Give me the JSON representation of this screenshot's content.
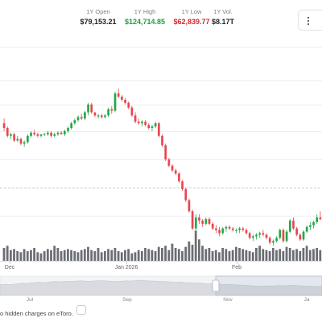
{
  "stats": [
    {
      "label": "1Y Open",
      "value": "$79,153.21",
      "color": "#222222"
    },
    {
      "label": "1Y High",
      "value": "$124,714.85",
      "color": "#1f9d3e"
    },
    {
      "label": "1Y Low",
      "value": "$62,839.77",
      "color": "#d6252c"
    },
    {
      "label": "1Y Vol.",
      "value": "$8.17T",
      "color": "#222222"
    }
  ],
  "footer": {
    "text": "o hidden charges on eToro."
  },
  "icons": {
    "menu": "menu-icon",
    "info": "info-icon"
  },
  "colors": {
    "up": "#21a94b",
    "down": "#e8464e",
    "volume": "#6b6e73",
    "navigator_fill": "#d9dbe0"
  },
  "chart_data": {
    "type": "candlestick",
    "candles": [
      [
        98,
        101,
        93,
        95
      ],
      [
        95,
        96,
        89,
        90
      ],
      [
        90,
        92,
        88,
        91
      ],
      [
        91,
        92,
        86,
        87
      ],
      [
        87,
        90,
        86,
        88
      ],
      [
        88,
        89,
        84,
        85
      ],
      [
        85,
        87,
        83,
        86
      ],
      [
        86,
        91,
        85,
        90
      ],
      [
        90,
        93,
        89,
        92
      ],
      [
        92,
        94,
        90,
        91
      ],
      [
        91,
        92,
        89,
        90
      ],
      [
        90,
        91,
        89,
        91
      ],
      [
        91,
        92,
        90,
        91
      ],
      [
        91,
        93,
        90,
        92
      ],
      [
        92,
        93,
        89,
        90
      ],
      [
        90,
        92,
        89,
        91
      ],
      [
        91,
        93,
        90,
        92
      ],
      [
        92,
        93,
        91,
        91
      ],
      [
        91,
        94,
        90,
        93
      ],
      [
        93,
        96,
        92,
        95
      ],
      [
        95,
        99,
        94,
        98
      ],
      [
        98,
        101,
        97,
        100
      ],
      [
        100,
        103,
        99,
        102
      ],
      [
        102,
        104,
        100,
        101
      ],
      [
        101,
        106,
        100,
        105
      ],
      [
        105,
        111,
        103,
        110
      ],
      [
        110,
        111,
        104,
        105
      ],
      [
        105,
        105,
        102,
        103
      ],
      [
        103,
        104,
        101,
        103
      ],
      [
        103,
        104,
        101,
        102
      ],
      [
        102,
        104,
        101,
        103
      ],
      [
        103,
        108,
        102,
        107
      ],
      [
        107,
        109,
        104,
        106
      ],
      [
        106,
        118,
        105,
        117
      ],
      [
        117,
        120,
        114,
        115
      ],
      [
        115,
        116,
        112,
        113
      ],
      [
        113,
        114,
        110,
        111
      ],
      [
        111,
        112,
        107,
        108
      ],
      [
        108,
        109,
        102,
        103
      ],
      [
        103,
        105,
        98,
        99
      ],
      [
        99,
        101,
        97,
        98
      ],
      [
        98,
        100,
        96,
        99
      ],
      [
        99,
        100,
        96,
        97
      ],
      [
        97,
        98,
        94,
        95
      ],
      [
        95,
        97,
        93,
        96
      ],
      [
        96,
        99,
        95,
        98
      ],
      [
        98,
        99,
        89,
        90
      ],
      [
        90,
        91,
        83,
        84
      ],
      [
        84,
        85,
        74,
        75
      ],
      [
        75,
        76,
        70,
        71
      ],
      [
        71,
        72,
        67,
        68
      ],
      [
        68,
        69,
        65,
        66
      ],
      [
        66,
        67,
        60,
        61
      ],
      [
        61,
        62,
        55,
        56
      ],
      [
        56,
        57,
        48,
        49
      ],
      [
        49,
        50,
        41,
        42
      ],
      [
        42,
        43,
        30,
        31
      ],
      [
        31,
        40,
        22,
        38
      ],
      [
        38,
        40,
        34,
        36
      ],
      [
        36,
        37,
        32,
        34
      ],
      [
        34,
        38,
        33,
        37
      ],
      [
        37,
        38,
        33,
        34
      ],
      [
        34,
        35,
        30,
        31
      ],
      [
        31,
        33,
        28,
        30
      ],
      [
        30,
        32,
        26,
        28
      ],
      [
        28,
        32,
        27,
        31
      ],
      [
        31,
        33,
        29,
        32
      ],
      [
        32,
        33,
        30,
        31
      ],
      [
        31,
        32,
        29,
        30
      ],
      [
        30,
        31,
        28,
        30
      ],
      [
        30,
        32,
        28,
        31
      ],
      [
        31,
        32,
        29,
        30
      ],
      [
        30,
        31,
        27,
        28
      ],
      [
        28,
        29,
        24,
        25
      ],
      [
        25,
        27,
        23,
        26
      ],
      [
        26,
        28,
        24,
        27
      ],
      [
        27,
        29,
        25,
        28
      ],
      [
        28,
        30,
        26,
        27
      ],
      [
        27,
        28,
        24,
        25
      ],
      [
        25,
        26,
        21,
        22
      ],
      [
        22,
        24,
        20,
        23
      ],
      [
        23,
        26,
        22,
        25
      ],
      [
        25,
        31,
        24,
        30
      ],
      [
        30,
        31,
        22,
        23
      ],
      [
        23,
        30,
        22,
        29
      ],
      [
        29,
        37,
        28,
        36
      ],
      [
        36,
        38,
        30,
        31
      ],
      [
        31,
        32,
        26,
        27
      ],
      [
        27,
        28,
        23,
        24
      ],
      [
        24,
        30,
        23,
        29
      ],
      [
        29,
        33,
        28,
        32
      ],
      [
        32,
        35,
        30,
        33
      ],
      [
        33,
        36,
        31,
        35
      ],
      [
        35,
        40,
        34,
        38
      ],
      [
        38,
        42,
        36,
        37
      ]
    ],
    "volume": [
      12,
      14,
      10,
      11,
      9,
      8,
      11,
      9,
      10,
      12,
      8,
      7,
      9,
      11,
      10,
      14,
      12,
      9,
      10,
      11,
      10,
      9,
      8,
      10,
      11,
      13,
      10,
      9,
      12,
      8,
      9,
      11,
      10,
      12,
      9,
      8,
      10,
      11,
      7,
      8,
      10,
      9,
      12,
      11,
      10,
      9,
      13,
      12,
      14,
      10,
      16,
      12,
      11,
      9,
      13,
      18,
      15,
      28,
      20,
      14,
      11,
      12,
      9,
      10,
      8,
      12,
      11,
      9,
      10,
      13,
      12,
      11,
      10,
      9,
      8,
      12,
      14,
      11,
      10,
      9,
      12,
      10,
      11,
      9,
      13,
      12,
      10,
      11,
      9,
      12,
      14,
      10,
      11,
      12,
      10
    ],
    "x_tick_labels": [
      "Dec",
      "Jan 2026",
      "Feb"
    ],
    "navigator_tick_labels": [
      "Jul",
      "Sep",
      "Nov",
      "Ja"
    ],
    "navigator_series": [
      42,
      44,
      43,
      46,
      48,
      47,
      50,
      52,
      51,
      53,
      55,
      54,
      56,
      55,
      57,
      58,
      56,
      57,
      59,
      58,
      57,
      55,
      56,
      58,
      57,
      59,
      60,
      58,
      57,
      56,
      55,
      54,
      52,
      53,
      51,
      50,
      49,
      48,
      46,
      47,
      45,
      43,
      44,
      42,
      41,
      40,
      38,
      37,
      36,
      38,
      37,
      39,
      38,
      40,
      39,
      38,
      37,
      36,
      35,
      37
    ]
  }
}
